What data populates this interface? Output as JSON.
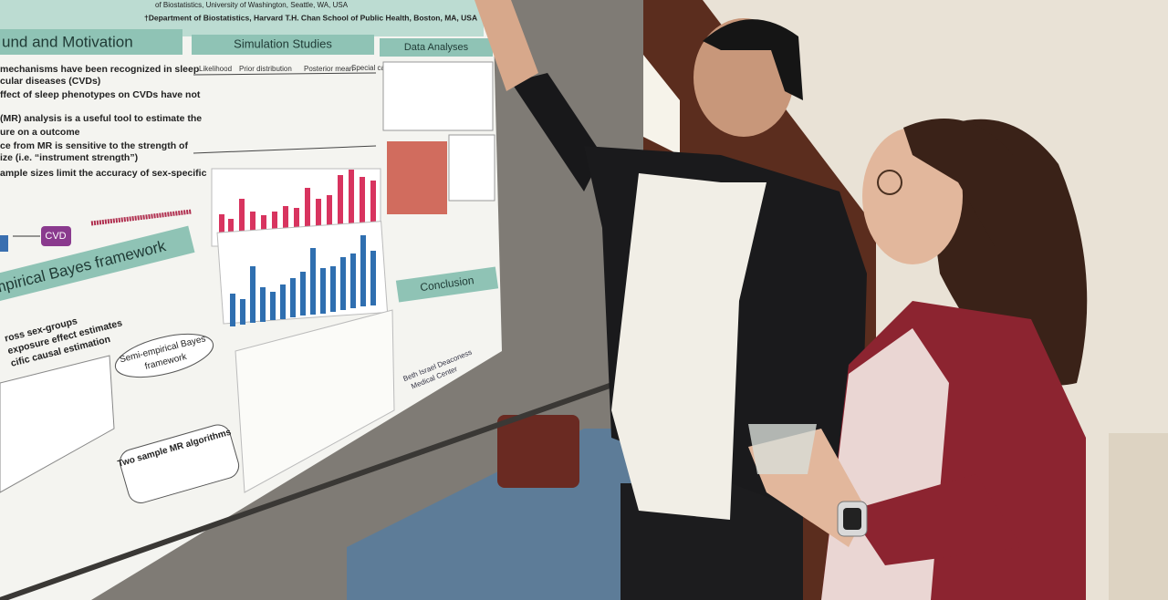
{
  "poster": {
    "affiliation_1": "of Biostatistics, University of Washington, Seattle, WA, USA",
    "affiliation_2": "†Department of Biostatistics, Harvard T.H. Chan School of Public Health, Boston, MA, USA",
    "background": {
      "title": "und and Motivation",
      "lines": [
        "mechanisms have been recognized in sleep",
        "cular diseases (CVDs)",
        "ffect of sleep phenotypes on CVDs have not",
        "(MR) analysis is a useful tool to estimate the",
        "ure on a outcome",
        "ce from MR is sensitive to the strength of",
        "ize (i.e. “instrument strength”)",
        "ample sizes limit the accuracy of sex-specific"
      ]
    },
    "diagram_label": "CVD",
    "simulation": {
      "title": "Simulation Studies",
      "columns": [
        "Likelihood",
        "Prior distribution",
        "Posterior mean",
        "Special cases"
      ]
    },
    "data_analyses": {
      "title": "Data Analyses"
    },
    "framework": {
      "title": "mpirical Bayes framework",
      "lines": [
        "ross sex-groups",
        "exposure effect estimates",
        "cific causal estimation"
      ],
      "nodes": [
        "Semi-empirical Bayes",
        "framework",
        "Two sample MR algorithms"
      ]
    },
    "conclusion": {
      "title": "Conclusion"
    },
    "logo": [
      "Beth Israel Deaconess",
      "Medical Center"
    ]
  }
}
